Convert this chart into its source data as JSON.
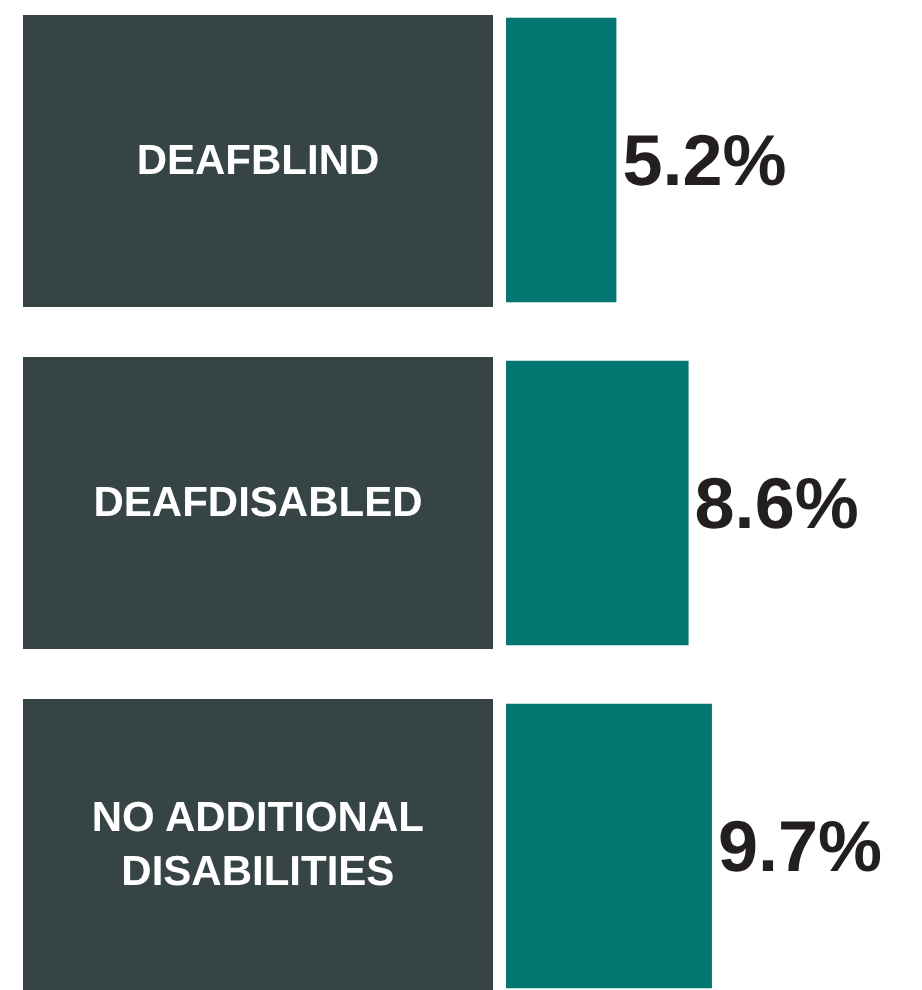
{
  "chart_data": {
    "type": "bar",
    "orientation": "horizontal",
    "categories": [
      "DEAFBLIND",
      "DEAFDISABLED",
      "NO ADDITIONAL DISABILITIES"
    ],
    "values": [
      5.2,
      8.6,
      9.7
    ],
    "value_labels": [
      "5.2%",
      "8.6%",
      "9.7%"
    ],
    "color": "#037672"
  }
}
